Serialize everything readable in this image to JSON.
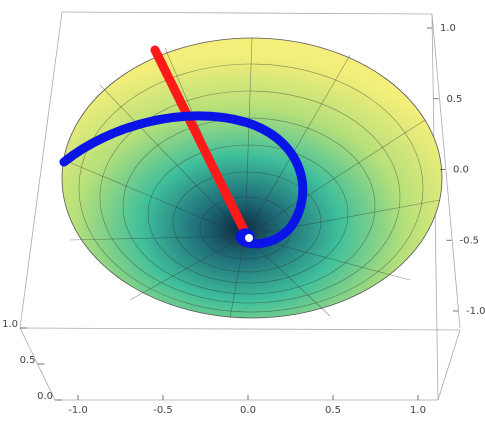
{
  "chart_data": {
    "type": "surface3d",
    "xlim": [
      -1,
      1
    ],
    "xticks": [
      {
        "value": -1,
        "label": "-1.0"
      },
      {
        "value": -0.5,
        "label": "-0.5"
      },
      {
        "value": 0,
        "label": "0.0"
      },
      {
        "value": 0.5,
        "label": "0.5"
      },
      {
        "value": 1,
        "label": "1.0"
      }
    ],
    "ylim": [
      0,
      1
    ],
    "yticks": [
      {
        "value": 0,
        "label": "0.0"
      },
      {
        "value": 0.5,
        "label": "0.5"
      },
      {
        "value": 1,
        "label": "1.0"
      }
    ],
    "zlim": [
      -1,
      1
    ],
    "zticks": [
      {
        "value": -1,
        "label": "-1.0"
      },
      {
        "value": -0.5,
        "label": "-0.5"
      },
      {
        "value": 0,
        "label": "0.0"
      },
      {
        "value": 0.5,
        "label": "0.5"
      },
      {
        "value": 1,
        "label": "1.0"
      }
    ]
  }
}
